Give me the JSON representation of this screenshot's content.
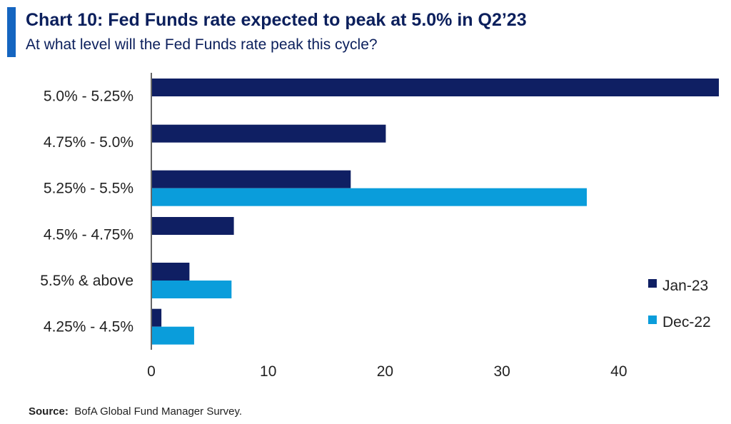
{
  "header": {
    "title": "Chart 10: Fed Funds rate expected to peak at 5.0% in Q2’23",
    "subtitle": "At what level will the Fed Funds rate peak this cycle?"
  },
  "footer": {
    "source_label": "Source:",
    "source_text": "BofA Global Fund Manager Survey."
  },
  "colors": {
    "title_bar": "#1565c0",
    "title_text": "#0b1f5c"
  },
  "chart_data": {
    "type": "bar",
    "orientation": "horizontal",
    "categories": [
      "5.0% - 5.25%",
      "4.75% - 5.0%",
      "5.25% - 5.5%",
      "4.5% - 4.75%",
      "5.5% & above",
      "4.25% - 4.5%"
    ],
    "series": [
      {
        "name": "Jan-23",
        "color": "#0f1f63",
        "values": [
          48.5,
          20,
          17,
          7,
          3.2,
          0.8
        ]
      },
      {
        "name": "Dec-22",
        "color": "#0a9ddb",
        "values": [
          null,
          null,
          37.2,
          null,
          6.8,
          3.6
        ]
      }
    ],
    "xlim": [
      0,
      48.5
    ],
    "xticks": [
      0,
      10,
      20,
      30,
      40
    ],
    "title": "Chart 10: Fed Funds rate expected to peak at 5.0% in Q2’23",
    "subtitle": "At what level will the Fed Funds rate peak this cycle?",
    "xlabel": "",
    "ylabel": "",
    "grid": false,
    "legend": "bottom-right"
  }
}
